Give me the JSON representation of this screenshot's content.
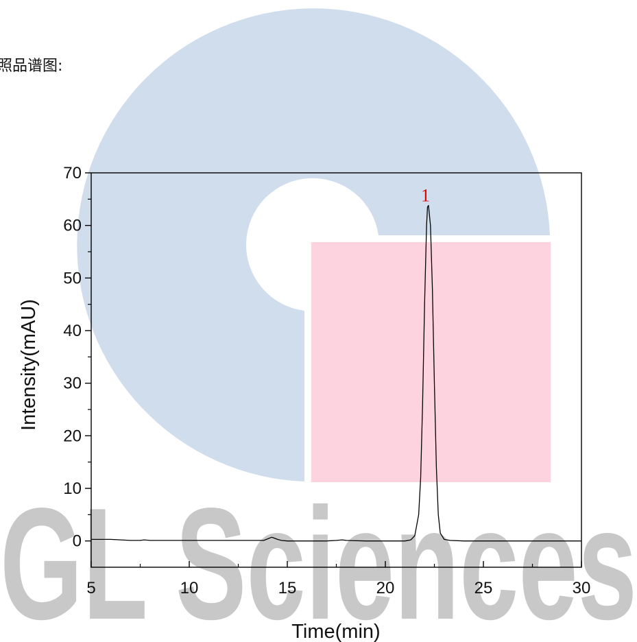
{
  "caption": "照品谱图:",
  "watermark": {
    "text": "GL Sciences",
    "circle_color": "#d0dded",
    "square_color": "#fcd3de",
    "text_color": "#c8c8c8"
  },
  "chart_data": {
    "type": "line",
    "xlabel": "Time(min)",
    "ylabel": "Intensity(mAU)",
    "xlim": [
      5,
      30
    ],
    "ylim": [
      -5,
      70
    ],
    "xticks": [
      5,
      10,
      15,
      20,
      25,
      30
    ],
    "yticks": [
      0,
      10,
      20,
      30,
      40,
      50,
      60,
      70
    ],
    "grid": false,
    "line_color": "#000000",
    "series": [
      {
        "x": [
          5.0,
          6.0,
          7.0,
          7.5,
          7.7,
          8.0,
          9.0,
          10.0,
          11.0,
          12.0,
          13.0,
          13.8,
          14.0,
          14.2,
          14.3,
          14.5,
          14.7,
          15.0,
          16.0,
          17.0,
          17.5,
          17.8,
          18.0,
          19.0,
          20.0,
          21.0,
          21.3,
          21.5,
          21.7,
          21.8,
          21.9,
          22.0,
          22.1,
          22.15,
          22.2,
          22.3,
          22.4,
          22.5,
          22.6,
          22.7,
          22.8,
          23.0,
          23.3,
          24.0,
          25.0,
          26.0,
          27.0,
          28.0,
          29.0,
          30.0
        ],
        "y": [
          0.3,
          0.3,
          0.1,
          0.1,
          0.2,
          0.1,
          0.1,
          0.1,
          0.1,
          0.1,
          0.1,
          0.1,
          0.4,
          0.7,
          0.6,
          0.3,
          0.1,
          0.0,
          0.0,
          0.0,
          0.1,
          0.2,
          0.1,
          0.0,
          0.0,
          0.0,
          0.2,
          1.0,
          5.0,
          12.0,
          26.0,
          45.0,
          60.0,
          63.5,
          63.8,
          60.0,
          48.0,
          30.0,
          14.0,
          5.0,
          1.5,
          0.3,
          0.1,
          0.0,
          0.0,
          0.0,
          0.0,
          0.0,
          0.0,
          0.0
        ]
      }
    ],
    "annotations": [
      {
        "text": "1",
        "x": 22.15,
        "y": 63.8,
        "color": "#e00000"
      }
    ]
  }
}
